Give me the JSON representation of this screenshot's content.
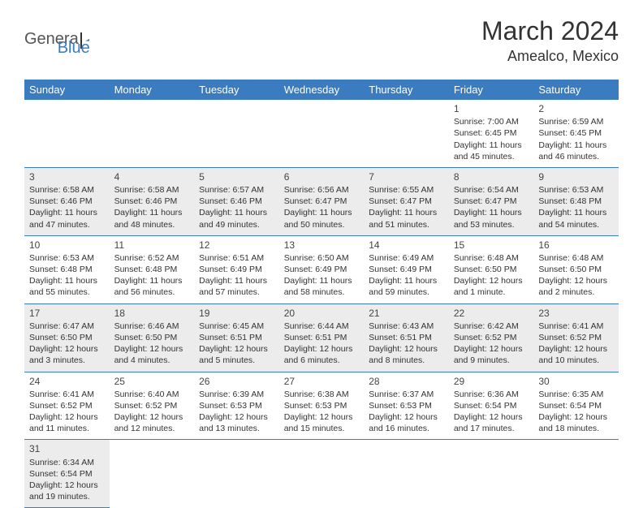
{
  "logo": {
    "part1": "Genera",
    "part2": "Blue"
  },
  "title": "March 2024",
  "location": "Amealco, Mexico",
  "colors": {
    "header_bg": "#3b7bbf",
    "header_text": "#ffffff",
    "row_shade": "#ececec",
    "row_plain": "#ffffff",
    "border": "#3b7bbf",
    "text": "#333333"
  },
  "weekdays": [
    "Sunday",
    "Monday",
    "Tuesday",
    "Wednesday",
    "Thursday",
    "Friday",
    "Saturday"
  ],
  "weeks": [
    {
      "shade": false,
      "days": [
        null,
        null,
        null,
        null,
        null,
        {
          "n": "1",
          "sr": "Sunrise: 7:00 AM",
          "ss": "Sunset: 6:45 PM",
          "d1": "Daylight: 11 hours",
          "d2": "and 45 minutes."
        },
        {
          "n": "2",
          "sr": "Sunrise: 6:59 AM",
          "ss": "Sunset: 6:45 PM",
          "d1": "Daylight: 11 hours",
          "d2": "and 46 minutes."
        }
      ]
    },
    {
      "shade": true,
      "days": [
        {
          "n": "3",
          "sr": "Sunrise: 6:58 AM",
          "ss": "Sunset: 6:46 PM",
          "d1": "Daylight: 11 hours",
          "d2": "and 47 minutes."
        },
        {
          "n": "4",
          "sr": "Sunrise: 6:58 AM",
          "ss": "Sunset: 6:46 PM",
          "d1": "Daylight: 11 hours",
          "d2": "and 48 minutes."
        },
        {
          "n": "5",
          "sr": "Sunrise: 6:57 AM",
          "ss": "Sunset: 6:46 PM",
          "d1": "Daylight: 11 hours",
          "d2": "and 49 minutes."
        },
        {
          "n": "6",
          "sr": "Sunrise: 6:56 AM",
          "ss": "Sunset: 6:47 PM",
          "d1": "Daylight: 11 hours",
          "d2": "and 50 minutes."
        },
        {
          "n": "7",
          "sr": "Sunrise: 6:55 AM",
          "ss": "Sunset: 6:47 PM",
          "d1": "Daylight: 11 hours",
          "d2": "and 51 minutes."
        },
        {
          "n": "8",
          "sr": "Sunrise: 6:54 AM",
          "ss": "Sunset: 6:47 PM",
          "d1": "Daylight: 11 hours",
          "d2": "and 53 minutes."
        },
        {
          "n": "9",
          "sr": "Sunrise: 6:53 AM",
          "ss": "Sunset: 6:48 PM",
          "d1": "Daylight: 11 hours",
          "d2": "and 54 minutes."
        }
      ]
    },
    {
      "shade": false,
      "days": [
        {
          "n": "10",
          "sr": "Sunrise: 6:53 AM",
          "ss": "Sunset: 6:48 PM",
          "d1": "Daylight: 11 hours",
          "d2": "and 55 minutes."
        },
        {
          "n": "11",
          "sr": "Sunrise: 6:52 AM",
          "ss": "Sunset: 6:48 PM",
          "d1": "Daylight: 11 hours",
          "d2": "and 56 minutes."
        },
        {
          "n": "12",
          "sr": "Sunrise: 6:51 AM",
          "ss": "Sunset: 6:49 PM",
          "d1": "Daylight: 11 hours",
          "d2": "and 57 minutes."
        },
        {
          "n": "13",
          "sr": "Sunrise: 6:50 AM",
          "ss": "Sunset: 6:49 PM",
          "d1": "Daylight: 11 hours",
          "d2": "and 58 minutes."
        },
        {
          "n": "14",
          "sr": "Sunrise: 6:49 AM",
          "ss": "Sunset: 6:49 PM",
          "d1": "Daylight: 11 hours",
          "d2": "and 59 minutes."
        },
        {
          "n": "15",
          "sr": "Sunrise: 6:48 AM",
          "ss": "Sunset: 6:50 PM",
          "d1": "Daylight: 12 hours",
          "d2": "and 1 minute."
        },
        {
          "n": "16",
          "sr": "Sunrise: 6:48 AM",
          "ss": "Sunset: 6:50 PM",
          "d1": "Daylight: 12 hours",
          "d2": "and 2 minutes."
        }
      ]
    },
    {
      "shade": true,
      "days": [
        {
          "n": "17",
          "sr": "Sunrise: 6:47 AM",
          "ss": "Sunset: 6:50 PM",
          "d1": "Daylight: 12 hours",
          "d2": "and 3 minutes."
        },
        {
          "n": "18",
          "sr": "Sunrise: 6:46 AM",
          "ss": "Sunset: 6:50 PM",
          "d1": "Daylight: 12 hours",
          "d2": "and 4 minutes."
        },
        {
          "n": "19",
          "sr": "Sunrise: 6:45 AM",
          "ss": "Sunset: 6:51 PM",
          "d1": "Daylight: 12 hours",
          "d2": "and 5 minutes."
        },
        {
          "n": "20",
          "sr": "Sunrise: 6:44 AM",
          "ss": "Sunset: 6:51 PM",
          "d1": "Daylight: 12 hours",
          "d2": "and 6 minutes."
        },
        {
          "n": "21",
          "sr": "Sunrise: 6:43 AM",
          "ss": "Sunset: 6:51 PM",
          "d1": "Daylight: 12 hours",
          "d2": "and 8 minutes."
        },
        {
          "n": "22",
          "sr": "Sunrise: 6:42 AM",
          "ss": "Sunset: 6:52 PM",
          "d1": "Daylight: 12 hours",
          "d2": "and 9 minutes."
        },
        {
          "n": "23",
          "sr": "Sunrise: 6:41 AM",
          "ss": "Sunset: 6:52 PM",
          "d1": "Daylight: 12 hours",
          "d2": "and 10 minutes."
        }
      ]
    },
    {
      "shade": false,
      "days": [
        {
          "n": "24",
          "sr": "Sunrise: 6:41 AM",
          "ss": "Sunset: 6:52 PM",
          "d1": "Daylight: 12 hours",
          "d2": "and 11 minutes."
        },
        {
          "n": "25",
          "sr": "Sunrise: 6:40 AM",
          "ss": "Sunset: 6:52 PM",
          "d1": "Daylight: 12 hours",
          "d2": "and 12 minutes."
        },
        {
          "n": "26",
          "sr": "Sunrise: 6:39 AM",
          "ss": "Sunset: 6:53 PM",
          "d1": "Daylight: 12 hours",
          "d2": "and 13 minutes."
        },
        {
          "n": "27",
          "sr": "Sunrise: 6:38 AM",
          "ss": "Sunset: 6:53 PM",
          "d1": "Daylight: 12 hours",
          "d2": "and 15 minutes."
        },
        {
          "n": "28",
          "sr": "Sunrise: 6:37 AM",
          "ss": "Sunset: 6:53 PM",
          "d1": "Daylight: 12 hours",
          "d2": "and 16 minutes."
        },
        {
          "n": "29",
          "sr": "Sunrise: 6:36 AM",
          "ss": "Sunset: 6:54 PM",
          "d1": "Daylight: 12 hours",
          "d2": "and 17 minutes."
        },
        {
          "n": "30",
          "sr": "Sunrise: 6:35 AM",
          "ss": "Sunset: 6:54 PM",
          "d1": "Daylight: 12 hours",
          "d2": "and 18 minutes."
        }
      ]
    },
    {
      "shade": true,
      "days": [
        {
          "n": "31",
          "sr": "Sunrise: 6:34 AM",
          "ss": "Sunset: 6:54 PM",
          "d1": "Daylight: 12 hours",
          "d2": "and 19 minutes."
        },
        null,
        null,
        null,
        null,
        null,
        null
      ]
    }
  ]
}
